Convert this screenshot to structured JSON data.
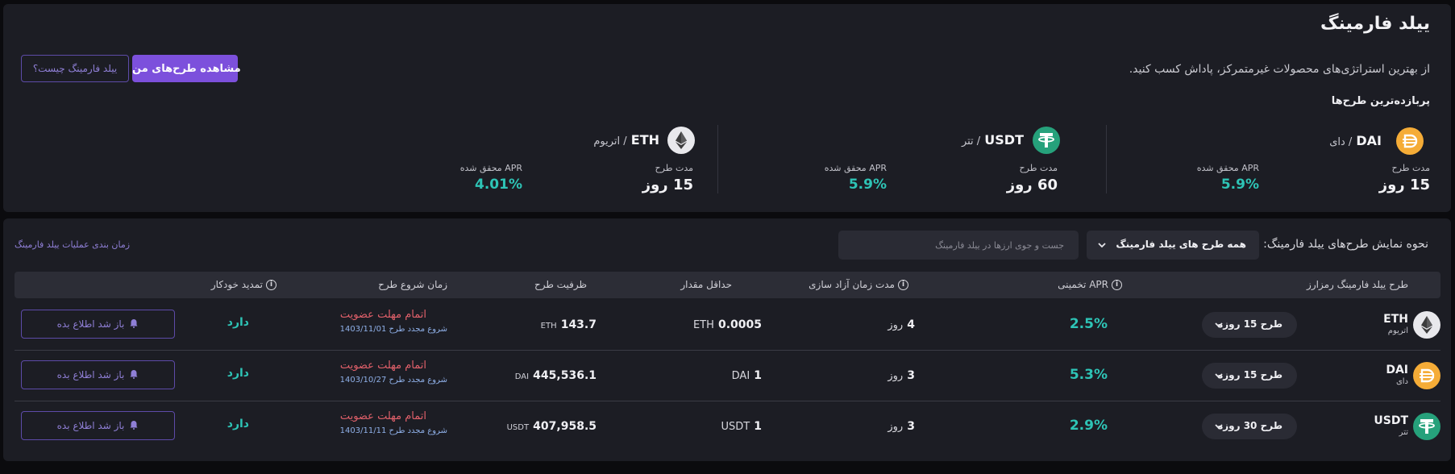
{
  "header": {
    "title": "ییلد فارمینگ",
    "description": "از بهترین استراتژی‌های محصولات غیرمتمرکز، پاداش کسب کنید.",
    "primary_button": "مشاهده طرح‌های من",
    "secondary_button": "ییلد فارمینگ چیست؟",
    "section_title": "پربازده‌ترین طرح‌ها"
  },
  "top_plans": [
    {
      "symbol": "DAI",
      "name": "/ دای",
      "duration_label": "مدت طرح",
      "duration": "15 روز",
      "apr_label": "APR محقق شده",
      "apr": "5.9%",
      "icon": "dai-icon"
    },
    {
      "symbol": "USDT",
      "name": "/ تتر",
      "duration_label": "مدت طرح",
      "duration": "60 روز",
      "apr_label": "APR محقق شده",
      "apr": "5.9%",
      "icon": "usdt-icon"
    },
    {
      "symbol": "ETH",
      "name": "/ اتریوم",
      "duration_label": "مدت طرح",
      "duration": "15 روز",
      "apr_label": "APR محقق شده",
      "apr": "4.01%",
      "icon": "eth-icon"
    }
  ],
  "filters": {
    "view_label": "نحوه نمایش طرح‌های ییلد فارمینگ:",
    "select_value": "همه طرح های ییلد فارمینگ",
    "search_placeholder": "جست و جوی ارزها در ییلد فارمینگ",
    "timing_link": "زمان بندی عملیات ییلد فارمینگ"
  },
  "table": {
    "headers": {
      "plan": "طرح ییلد فارمینگ رمزارز",
      "apr": "APR تخمینی",
      "release": "مدت زمان آزاد سازی",
      "min": "حداقل مقدار",
      "capacity": "ظرفیت طرح",
      "start": "زمان شروع طرح",
      "renew": "تمدید خودکار"
    },
    "rows": [
      {
        "symbol": "ETH",
        "name": "اتریوم",
        "plan": "طرح 15 روزه",
        "apr": "2.5%",
        "release_num": "4",
        "release_unit": "روز",
        "min_num": "0.0005",
        "min_unit": "ETH",
        "cap_num": "143.7",
        "cap_unit": "ETH",
        "status": "اتمام مهلت عضویت",
        "restart": "شروع مجدد طرح 1403/11/01",
        "renew": "دارد",
        "notify": "باز شد اطلاع بده",
        "icon": "eth-icon"
      },
      {
        "symbol": "DAI",
        "name": "دای",
        "plan": "طرح 15 روزه",
        "apr": "5.3%",
        "release_num": "3",
        "release_unit": "روز",
        "min_num": "1",
        "min_unit": "DAI",
        "cap_num": "445,536.1",
        "cap_unit": "DAI",
        "status": "اتمام مهلت عضویت",
        "restart": "شروع مجدد طرح 1403/10/27",
        "renew": "دارد",
        "notify": "باز شد اطلاع بده",
        "icon": "dai-icon"
      },
      {
        "symbol": "USDT",
        "name": "تتر",
        "plan": "طرح 30 روزه",
        "apr": "2.9%",
        "release_num": "3",
        "release_unit": "روز",
        "min_num": "1",
        "min_unit": "USDT",
        "cap_num": "407,958.5",
        "cap_unit": "USDT",
        "status": "اتمام مهلت عضویت",
        "restart": "شروع مجدد طرح 1403/11/11",
        "renew": "دارد",
        "notify": "باز شد اطلاع بده",
        "icon": "usdt-icon"
      }
    ]
  },
  "colors": {
    "accent": "#7c50dc",
    "positive": "#2ec4b6",
    "warning": "#e0606a",
    "dai": "#f5ac37",
    "usdt": "#26a17b",
    "eth_bg": "#e8e8ec"
  }
}
